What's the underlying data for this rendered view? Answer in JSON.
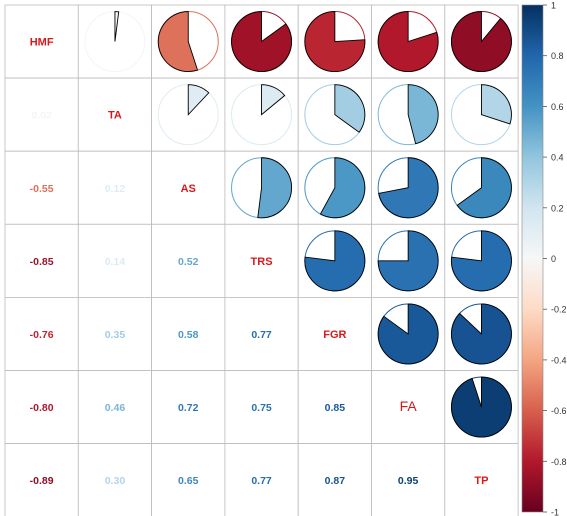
{
  "chart_data": {
    "type": "heatmap",
    "variables": [
      "HMF",
      "TA",
      "AS",
      "TRS",
      "FGR",
      "FA",
      "TP"
    ],
    "matrix": [
      [
        1.0,
        0.02,
        -0.55,
        -0.85,
        -0.76,
        -0.8,
        -0.89
      ],
      [
        0.02,
        1.0,
        0.12,
        0.14,
        0.35,
        0.46,
        0.3
      ],
      [
        -0.55,
        0.12,
        1.0,
        0.52,
        0.58,
        0.72,
        0.65
      ],
      [
        -0.85,
        0.14,
        0.52,
        1.0,
        0.77,
        0.75,
        0.77
      ],
      [
        -0.76,
        0.35,
        0.58,
        0.77,
        1.0,
        0.85,
        0.87
      ],
      [
        -0.8,
        0.46,
        0.72,
        0.75,
        0.85,
        1.0,
        0.95
      ],
      [
        -0.89,
        0.3,
        0.65,
        0.77,
        0.87,
        0.95,
        1.0
      ]
    ],
    "lower_labels": [
      [],
      [
        "0.02"
      ],
      [
        "-0.55",
        "0.12"
      ],
      [
        "-0.85",
        "0.14",
        "0.52"
      ],
      [
        "-0.76",
        "0.35",
        "0.58",
        "0.77"
      ],
      [
        "-0.80",
        "0.46",
        "0.72",
        "0.75",
        "0.85"
      ],
      [
        "-0.89",
        "0.30",
        "0.65",
        "0.77",
        "0.87",
        "0.95"
      ]
    ],
    "upper_glyph": "pie",
    "lower_glyph": "number",
    "colorbar": {
      "ticks": [
        "1",
        "0.8",
        "0.6",
        "0.4",
        "0.2",
        "0",
        "-0.2",
        "-0.4",
        "-0.6",
        "-0.8",
        "-1"
      ],
      "range": [
        -1,
        1
      ]
    },
    "colors": {
      "negative_end": "#67001F",
      "mid_negative": "#D6604D",
      "mid": "#F7F7F7",
      "mid_positive": "#4393C3",
      "positive_end": "#053061",
      "diagonal_label": "#D7191C",
      "grid": "#BBBBBB"
    }
  }
}
